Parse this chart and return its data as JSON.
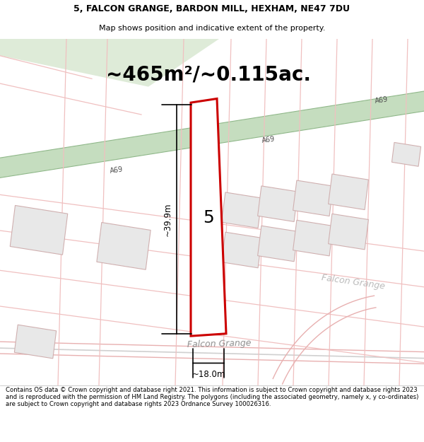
{
  "title_line1": "5, FALCON GRANGE, BARDON MILL, HEXHAM, NE47 7DU",
  "title_line2": "Map shows position and indicative extent of the property.",
  "area_text": "~465m²/~0.115ac.",
  "dim_height": "~39.9m",
  "dim_width": "~18.0m",
  "property_number": "5",
  "footer_text": "Contains OS data © Crown copyright and database right 2021. This information is subject to Crown copyright and database rights 2023 and is reproduced with the permission of HM Land Registry. The polygons (including the associated geometry, namely x, y co-ordinates) are subject to Crown copyright and database rights 2023 Ordnance Survey 100026316.",
  "bg_color": "#ffffff",
  "map_bg": "#ffffff",
  "road_band_pale": "#deebd8",
  "road_band_green": "#c5ddbf",
  "road_band_edge": "#90b88a",
  "property_fill": "#ffffff",
  "property_edge": "#cc0000",
  "building_fill": "#e8e8e8",
  "building_edge": "#d0b0b0",
  "plot_line_color": "#f0c0c0",
  "road_line_color": "#e8b0b0",
  "dim_line_color": "#000000",
  "text_color": "#000000",
  "a69_text_color": "#505050",
  "street_text_color": "#909090",
  "footer_color": "#000000"
}
